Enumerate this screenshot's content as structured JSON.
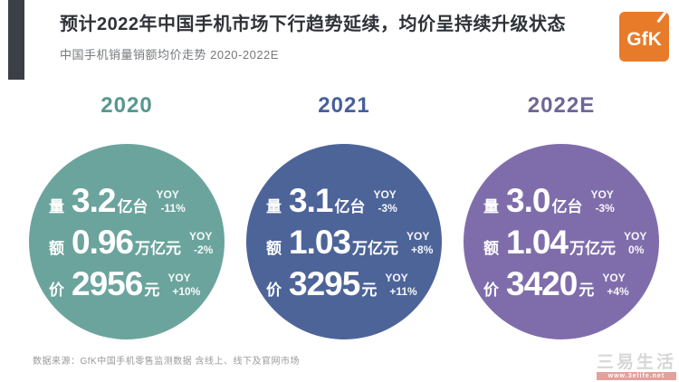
{
  "header": {
    "title": "预计2022年中国手机市场下行趋势延续，均价呈持续升级状态",
    "subtitle": "中国手机销量销额均价走势 2020-2022E",
    "logo_text": "GfK",
    "logo_color": "#e87b2a"
  },
  "chart_data": {
    "type": "table",
    "title": "中国手机销量销额均价走势 2020-2022E",
    "categories": [
      "2020",
      "2021",
      "2022E"
    ],
    "series": [
      {
        "name": "销量(量, 亿台)",
        "values": [
          3.2,
          3.1,
          3.0
        ],
        "yoy": [
          "-11%",
          "-3%",
          "-3%"
        ]
      },
      {
        "name": "销额(额, 万亿元)",
        "values": [
          0.96,
          1.03,
          1.04
        ],
        "yoy": [
          "-2%",
          "+8%",
          "0%"
        ]
      },
      {
        "name": "均价(价, 元)",
        "values": [
          2956,
          3295,
          3420
        ],
        "yoy": [
          "+10%",
          "+11%",
          "+4%"
        ]
      }
    ],
    "legend_position": "none",
    "grid": false,
    "colors": {
      "2020": "#6ba49d",
      "2021": "#4d6499",
      "2022E": "#7f6dab"
    }
  },
  "groups": [
    {
      "year": "2020",
      "circle_color": "#6ba49d",
      "year_color": "#56988f",
      "rows": [
        {
          "label": "量",
          "value": "3.2",
          "unit": "亿台",
          "yoy_label": "YOY",
          "yoy_value": "-11%"
        },
        {
          "label": "额",
          "value": "0.96",
          "unit": "万亿元",
          "yoy_label": "YOY",
          "yoy_value": "-2%"
        },
        {
          "label": "价",
          "value": "2956",
          "unit": "元",
          "yoy_label": "YOY",
          "yoy_value": "+10%"
        }
      ]
    },
    {
      "year": "2021",
      "circle_color": "#4d6499",
      "year_color": "#47609a",
      "rows": [
        {
          "label": "量",
          "value": "3.1",
          "unit": "亿台",
          "yoy_label": "YOY",
          "yoy_value": "-3%"
        },
        {
          "label": "额",
          "value": "1.03",
          "unit": "万亿元",
          "yoy_label": "YOY",
          "yoy_value": "+8%"
        },
        {
          "label": "价",
          "value": "3295",
          "unit": "元",
          "yoy_label": "YOY",
          "yoy_value": "+11%"
        }
      ]
    },
    {
      "year": "2022E",
      "circle_color": "#7f6dab",
      "year_color": "#6d6698",
      "rows": [
        {
          "label": "量",
          "value": "3.0",
          "unit": "亿台",
          "yoy_label": "YOY",
          "yoy_value": "-3%"
        },
        {
          "label": "额",
          "value": "1.04",
          "unit": "万亿元",
          "yoy_label": "YOY",
          "yoy_value": "0%"
        },
        {
          "label": "价",
          "value": "3420",
          "unit": "元",
          "yoy_label": "YOY",
          "yoy_value": "+4%"
        }
      ]
    }
  ],
  "footer": {
    "source": "数据来源：GfK中国手机零售监测数据 含线上、线下及官网市场"
  },
  "watermark": {
    "name": "三易生活",
    "url": "www.3elife.net"
  }
}
